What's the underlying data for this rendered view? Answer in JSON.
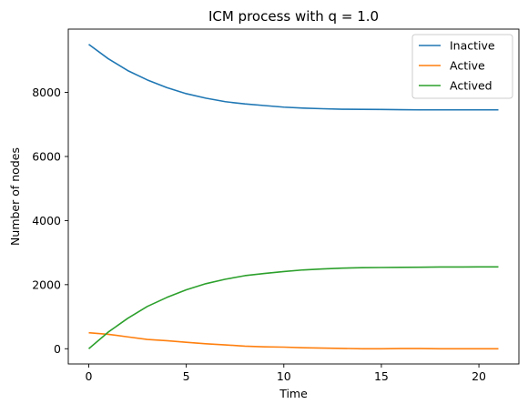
{
  "chart_data": {
    "type": "line",
    "title": "ICM process with q = 1.0",
    "xlabel": "Time",
    "ylabel": "Number of nodes",
    "xlim": [
      -1.05,
      22.05
    ],
    "ylim": [
      -475,
      9975
    ],
    "xticks": [
      0,
      5,
      10,
      15,
      20
    ],
    "yticks": [
      0,
      2000,
      4000,
      6000,
      8000
    ],
    "grid": false,
    "legend_position": "top-right",
    "x": [
      0,
      1,
      2,
      3,
      4,
      5,
      6,
      7,
      8,
      9,
      10,
      11,
      12,
      13,
      14,
      15,
      16,
      17,
      18,
      19,
      20,
      21
    ],
    "series": [
      {
        "name": "Inactive",
        "color": "#1f77b4",
        "values": [
          9500,
          9050,
          8680,
          8390,
          8150,
          7960,
          7820,
          7710,
          7640,
          7590,
          7540,
          7510,
          7490,
          7475,
          7470,
          7468,
          7460,
          7455,
          7455,
          7455,
          7455,
          7455
        ]
      },
      {
        "name": "Active",
        "color": "#ff7f0e",
        "values": [
          500,
          450,
          370,
          290,
          250,
          200,
          155,
          120,
          80,
          60,
          50,
          30,
          20,
          10,
          0,
          0,
          5,
          5,
          0,
          0,
          0,
          0
        ]
      },
      {
        "name": "Actived",
        "color": "#2ca02c",
        "values": [
          0,
          520,
          950,
          1320,
          1600,
          1840,
          2030,
          2170,
          2280,
          2350,
          2410,
          2460,
          2490,
          2515,
          2530,
          2535,
          2540,
          2545,
          2550,
          2550,
          2555,
          2555
        ]
      }
    ]
  }
}
